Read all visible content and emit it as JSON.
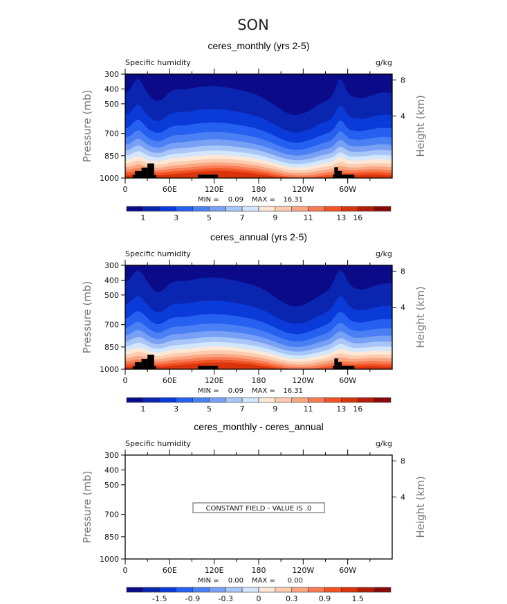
{
  "figure_title": "SON",
  "chart_data": [
    {
      "type": "contour",
      "title": "ceres_monthly (yrs 2-5)",
      "left_string": "Specific humidity",
      "right_string": "g/kg",
      "ylabel": "Pressure (mb)",
      "ylabel_right": "Height (km)",
      "ylim": [
        300,
        1000
      ],
      "yticks": [
        "300",
        "400",
        "500",
        "700",
        "850",
        "1000"
      ],
      "right_ticks": [
        "8",
        "4"
      ],
      "xlim": [
        0,
        360
      ],
      "xticks": [
        "0",
        "60E",
        "120E",
        "180",
        "120W",
        "60W"
      ],
      "stats": {
        "min_label": "MIN =",
        "min": "0.09",
        "max_label": "MAX =",
        "max": "16.31"
      },
      "levels": [
        1,
        2,
        3,
        4,
        5,
        6,
        7,
        8,
        9,
        10,
        11,
        12,
        13,
        16,
        17
      ],
      "colorbar_labels": [
        "1",
        "3",
        "5",
        "7",
        "9",
        "11",
        "13",
        "16"
      ],
      "terrain": [
        [
          10,
          13,
          980
        ],
        [
          13,
          22,
          953
        ],
        [
          22,
          30,
          930
        ],
        [
          30,
          39,
          902
        ],
        [
          39,
          42,
          980
        ],
        [
          98,
          125,
          977
        ],
        [
          280,
          282,
          977
        ],
        [
          282,
          287,
          927
        ],
        [
          287,
          292,
          953
        ],
        [
          292,
          309,
          977
        ]
      ],
      "constant_message": null
    },
    {
      "type": "contour",
      "title": "ceres_annual (yrs 2-5)",
      "left_string": "Specific humidity",
      "right_string": "g/kg",
      "ylabel": "Pressure (mb)",
      "ylabel_right": "Height (km)",
      "ylim": [
        300,
        1000
      ],
      "yticks": [
        "300",
        "400",
        "500",
        "700",
        "850",
        "1000"
      ],
      "right_ticks": [
        "8",
        "4"
      ],
      "xlim": [
        0,
        360
      ],
      "xticks": [
        "0",
        "60E",
        "120E",
        "180",
        "120W",
        "60W"
      ],
      "stats": {
        "min_label": "MIN =",
        "min": "0.09",
        "max_label": "MAX =",
        "max": "16.31"
      },
      "levels": [
        1,
        2,
        3,
        4,
        5,
        6,
        7,
        8,
        9,
        10,
        11,
        12,
        13,
        16,
        17
      ],
      "colorbar_labels": [
        "1",
        "3",
        "5",
        "7",
        "9",
        "11",
        "13",
        "16"
      ],
      "terrain": [
        [
          10,
          13,
          980
        ],
        [
          13,
          22,
          953
        ],
        [
          22,
          30,
          930
        ],
        [
          30,
          39,
          902
        ],
        [
          39,
          42,
          980
        ],
        [
          98,
          125,
          977
        ],
        [
          280,
          282,
          977
        ],
        [
          282,
          287,
          927
        ],
        [
          287,
          292,
          953
        ],
        [
          292,
          309,
          977
        ]
      ],
      "constant_message": null
    },
    {
      "type": "contour",
      "title": "ceres_monthly - ceres_annual",
      "left_string": "Specific humidity",
      "right_string": "g/kg",
      "ylabel": "Pressure (mb)",
      "ylabel_right": "Height (km)",
      "ylim": [
        300,
        1000
      ],
      "yticks": [
        "300",
        "400",
        "500",
        "700",
        "850",
        "1000"
      ],
      "right_ticks": [
        "8",
        "4"
      ],
      "xlim": [
        0,
        360
      ],
      "xticks": [
        "0",
        "60E",
        "120E",
        "180",
        "120W",
        "60W"
      ],
      "stats": {
        "min_label": "MIN =",
        "min": "0.00",
        "max_label": "MAX =",
        "max": "0.00"
      },
      "levels": [
        -1.8,
        -1.5,
        -1.2,
        -0.9,
        -0.6,
        -0.3,
        -0.1,
        0,
        0.1,
        0.3,
        0.6,
        0.9,
        1.2,
        1.5,
        1.8
      ],
      "colorbar_labels": [
        "-1.5",
        "-0.9",
        "-0.3",
        "0",
        "0.3",
        "0.9",
        "1.5"
      ],
      "terrain": [],
      "constant_message": "CONSTANT FIELD - VALUE IS .0"
    }
  ],
  "colors": [
    "#0b0b8a",
    "#0a26b0",
    "#0a3ad8",
    "#2660f0",
    "#4a80f4",
    "#78a0f4",
    "#a8c6f8",
    "#d2e6fc",
    "#fde8d6",
    "#fccbb0",
    "#f9a682",
    "#f77c54",
    "#f25224",
    "#d9340c",
    "#b11e08",
    "#870a08"
  ]
}
